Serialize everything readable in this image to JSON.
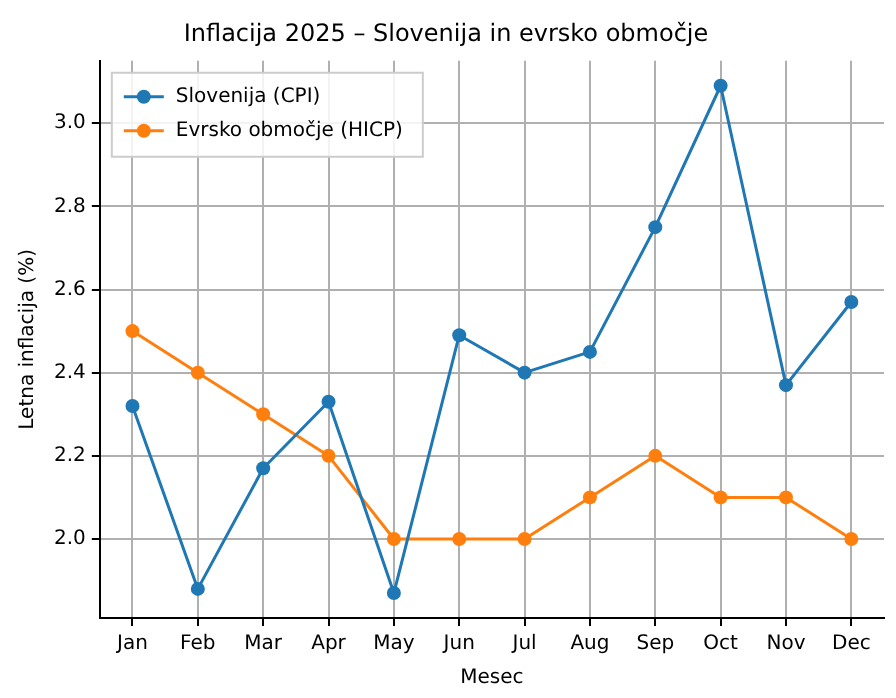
{
  "chart_data": {
    "type": "line",
    "title": "Inflacija 2025 – Slovenija in evrsko območje",
    "xlabel": "Mesec",
    "ylabel": "Letna inflacija (%)",
    "categories": [
      "Jan",
      "Feb",
      "Mar",
      "Apr",
      "May",
      "Jun",
      "Jul",
      "Aug",
      "Sep",
      "Oct",
      "Nov",
      "Dec"
    ],
    "series": [
      {
        "name": "Slovenija (CPI)",
        "color": "#1f77b4",
        "values": [
          2.32,
          1.88,
          2.17,
          2.33,
          1.87,
          2.49,
          2.4,
          2.45,
          2.75,
          3.09,
          2.37,
          2.57
        ]
      },
      {
        "name": "Evrsko območje (HICP)",
        "color": "#ff7f0e",
        "values": [
          2.5,
          2.4,
          2.3,
          2.2,
          2.0,
          2.0,
          2.0,
          2.1,
          2.2,
          2.1,
          2.1,
          2.0
        ]
      }
    ],
    "ylim": [
      1.81,
      3.15
    ],
    "yticks": [
      {
        "value": 2.0,
        "label": "2.0"
      },
      {
        "value": 2.2,
        "label": "2.2"
      },
      {
        "value": 2.4,
        "label": "2.4"
      },
      {
        "value": 2.6,
        "label": "2.6"
      },
      {
        "value": 2.8,
        "label": "2.8"
      },
      {
        "value": 3.0,
        "label": "3.0"
      }
    ],
    "grid": true,
    "legend": "top left",
    "marker": "circle",
    "line_style": "solid"
  }
}
